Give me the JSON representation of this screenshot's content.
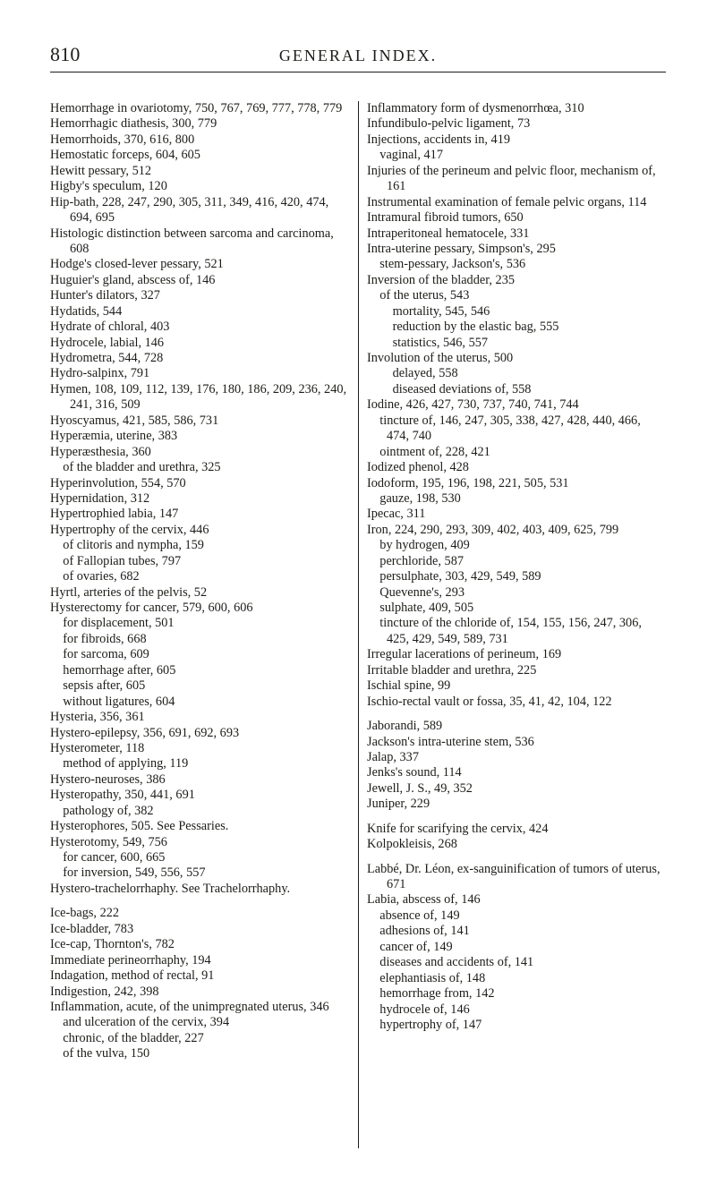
{
  "page_number": "810",
  "running_head": "GENERAL INDEX.",
  "left_column": [
    "Hemorrhage in ovariotomy, 750, 767, 769, 777, 778, 779",
    "Hemorrhagic diathesis, 300, 779",
    "Hemorrhoids, 370, 616, 800",
    "Hemostatic forceps, 604, 605",
    "Hewitt pessary, 512",
    "Higby's speculum, 120",
    "Hip-bath, 228, 247, 290, 305, 311, 349, 416, 420, 474, 694, 695",
    "Histologic distinction between sarcoma and carcinoma, 608",
    "Hodge's closed-lever pessary, 521",
    "Huguier's gland, abscess of, 146",
    "Hunter's dilators, 327",
    "Hydatids, 544",
    "Hydrate of chloral, 403",
    "Hydrocele, labial, 146",
    "Hydrometra, 544, 728",
    "Hydro-salpinx, 791",
    "Hymen, 108, 109, 112, 139, 176, 180, 186, 209, 236, 240, 241, 316, 509",
    "Hyoscyamus, 421, 585, 586, 731",
    "Hyperæmia, uterine, 383",
    "Hyperæsthesia, 360",
    "    of the bladder and urethra, 325",
    "Hyperinvolution, 554, 570",
    "Hypernidation, 312",
    "Hypertrophied labia, 147",
    "Hypertrophy of the cervix, 446",
    "    of clitoris and nympha, 159",
    "    of Fallopian tubes, 797",
    "    of ovaries, 682",
    "Hyrtl, arteries of the pelvis, 52",
    "Hysterectomy for cancer, 579, 600, 606",
    "    for displacement, 501",
    "    for fibroids, 668",
    "    for sarcoma, 609",
    "    hemorrhage after, 605",
    "    sepsis after, 605",
    "    without ligatures, 604",
    "Hysteria, 356, 361",
    "Hystero-epilepsy, 356, 691, 692, 693",
    "Hysterometer, 118",
    "    method of applying, 119",
    "Hystero-neuroses, 386",
    "Hysteropathy, 350, 441, 691",
    "    pathology of, 382",
    "Hysterophores, 505.  See Pessaries.",
    "Hysterotomy, 549, 756",
    "    for cancer, 600, 665",
    "    for inversion, 549, 556, 557",
    "Hystero-trachelorrhaphy.    See Trachelorrhaphy.",
    "",
    "Ice-bags, 222",
    "Ice-bladder, 783",
    "Ice-cap, Thornton's, 782",
    "Immediate perineorrhaphy, 194",
    "Indagation, method of rectal, 91",
    "Indigestion, 242, 398",
    "Inflammation, acute, of the unimpregnated uterus, 346",
    "    and ulceration of the cervix, 394",
    "    chronic, of the bladder, 227",
    "    of the vulva, 150"
  ],
  "right_column": [
    "Inflammatory form of dysmenorrhœa, 310",
    "Infundibulo-pelvic ligament, 73",
    "Injections, accidents in, 419",
    "    vaginal, 417",
    "Injuries of the perineum and pelvic floor, mechanism of, 161",
    "Instrumental examination of female pelvic organs, 114",
    "Intramural fibroid tumors, 650",
    "Intraperitoneal hematocele, 331",
    "Intra-uterine pessary, Simpson's, 295",
    "    stem-pessary, Jackson's, 536",
    "Inversion of the bladder, 235",
    "    of the uterus, 543",
    "        mortality, 545, 546",
    "        reduction by the elastic bag, 555",
    "        statistics, 546, 557",
    "Involution of the uterus, 500",
    "        delayed, 558",
    "        diseased deviations of, 558",
    "Iodine, 426, 427, 730, 737, 740, 741, 744",
    "    tincture of, 146, 247, 305, 338, 427, 428, 440, 466, 474, 740",
    "    ointment of, 228, 421",
    "Iodized phenol, 428",
    "Iodoform, 195, 196, 198, 221, 505, 531",
    "    gauze, 198, 530",
    "Ipecac, 311",
    "Iron, 224, 290, 293, 309, 402, 403, 409, 625, 799",
    "    by hydrogen, 409",
    "    perchloride, 587",
    "    persulphate, 303, 429, 549, 589",
    "    Quevenne's, 293",
    "    sulphate, 409, 505",
    "    tincture of the chloride of, 154, 155, 156, 247, 306, 425, 429, 549, 589, 731",
    "Irregular lacerations of perineum, 169",
    "Irritable bladder and urethra, 225",
    "Ischial spine, 99",
    "Ischio-rectal vault or fossa, 35, 41, 42, 104, 122",
    "",
    "Jaborandi, 589",
    "Jackson's intra-uterine stem, 536",
    "Jalap, 337",
    "Jenks's sound, 114",
    "Jewell, J. S., 49, 352",
    "Juniper, 229",
    "",
    "Knife for scarifying the cervix, 424",
    "Kolpokleisis, 268",
    "",
    "Labbé, Dr. Léon, ex-sanguinification of tumors of uterus, 671",
    "Labia, abscess of, 146",
    "    absence of, 149",
    "    adhesions of, 141",
    "    cancer of, 149",
    "    diseases and accidents of, 141",
    "    elephantiasis of, 148",
    "    hemorrhage from, 142",
    "    hydrocele of, 146",
    "    hypertrophy of, 147"
  ]
}
